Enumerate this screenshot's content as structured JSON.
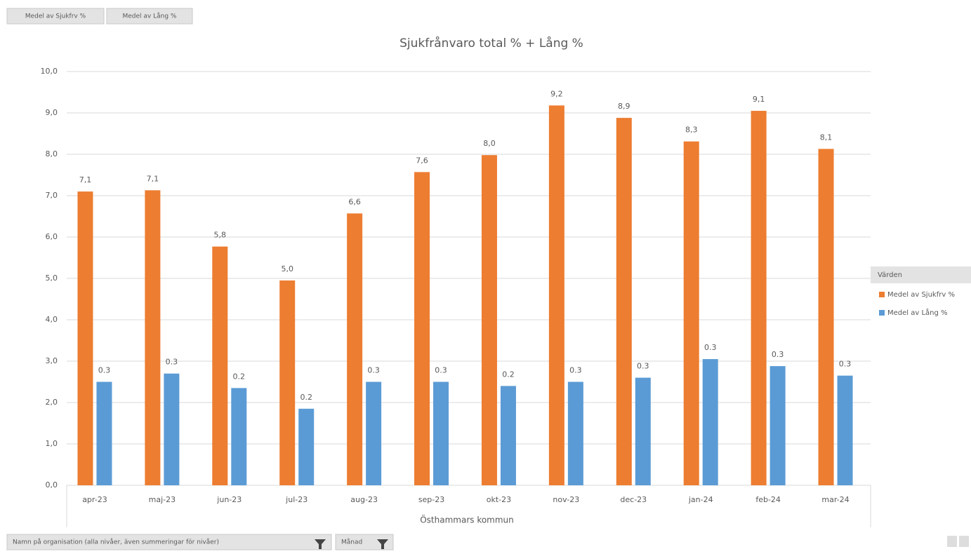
{
  "chart_data": {
    "type": "bar",
    "title": "Sjukfrånvaro total % + Lång %",
    "field_buttons": [
      "Medel av Sjukfrv %",
      "Medel av Lång %"
    ],
    "xlabel": "Östhammars kommun",
    "legend_title": "Värden",
    "legend": "right",
    "filters": [
      "Namn på organisation (alla nivåer, även summeringar för nivåer)",
      "Månad"
    ],
    "categories": [
      "apr-23",
      "maj-23",
      "jun-23",
      "jul-23",
      "aug-23",
      "sep-23",
      "okt-23",
      "nov-23",
      "dec-23",
      "jan-24",
      "feb-24",
      "mar-24"
    ],
    "series": [
      {
        "name": "Medel av Sjukfrv %",
        "color": "#ed7d31",
        "values": [
          7.1,
          7.13,
          5.77,
          4.95,
          6.57,
          7.57,
          7.98,
          9.18,
          8.88,
          8.31,
          9.05,
          8.13
        ],
        "value_labels": [
          "7,1",
          "7,1",
          "5,8",
          "5,0",
          "6,6",
          "7,6",
          "8,0",
          "9,2",
          "8,9",
          "8,3",
          "9,1",
          "8,1"
        ]
      },
      {
        "name": "Medel av Lång %",
        "color": "#5b9bd5",
        "axis": "y2",
        "values": [
          0.25,
          0.27,
          0.235,
          0.185,
          0.25,
          0.25,
          0.24,
          0.25,
          0.26,
          0.305,
          0.288,
          0.265
        ],
        "value_labels": [
          "0.3",
          "0.3",
          "0.2",
          "0.2",
          "0.3",
          "0.3",
          "0.2",
          "0.3",
          "0.3",
          "0.3",
          "0.3",
          "0.3"
        ]
      }
    ],
    "ylim": [
      0,
      10
    ],
    "yticks": [
      {
        "value": 0,
        "label": "0,0"
      },
      {
        "value": 1,
        "label": "1,0"
      },
      {
        "value": 2,
        "label": "2,0"
      },
      {
        "value": 3,
        "label": "3,0"
      },
      {
        "value": 4,
        "label": "4,0"
      },
      {
        "value": 5,
        "label": "5,0"
      },
      {
        "value": 6,
        "label": "6,0"
      },
      {
        "value": 7,
        "label": "7,0"
      },
      {
        "value": 8,
        "label": "8,0"
      },
      {
        "value": 9,
        "label": "9,0"
      },
      {
        "value": 10,
        "label": "10,0"
      }
    ],
    "y2lim": [
      0,
      1
    ],
    "grid": true
  }
}
